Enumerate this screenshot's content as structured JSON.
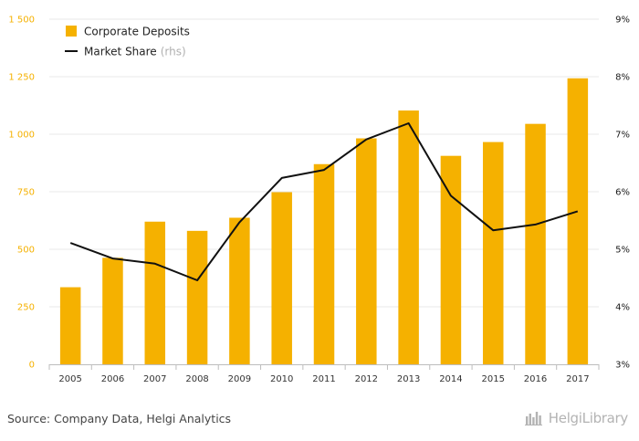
{
  "source_text": "Source: Company Data, Helgi Analytics",
  "brand": {
    "name": "HelgiLibrary",
    "icon": "helgi-library-logo-icon"
  },
  "colors": {
    "bar": "#f5b100",
    "line": "#111111",
    "grid": "#e8e8e8",
    "left_axis": "#f5b100",
    "right_axis": "#1a1a1a"
  },
  "chart_data": {
    "type": "bar",
    "categories": [
      "2005",
      "2006",
      "2007",
      "2008",
      "2009",
      "2010",
      "2011",
      "2012",
      "2013",
      "2014",
      "2015",
      "2016",
      "2017"
    ],
    "series": [
      {
        "name": "Corporate Deposits",
        "type": "bar",
        "axis": "left",
        "values": [
          335,
          463,
          620,
          580,
          637,
          748,
          870,
          982,
          1103,
          906,
          966,
          1045,
          1243
        ]
      },
      {
        "name": "Market Share",
        "unit": "(rhs)",
        "type": "line",
        "axis": "right",
        "values": [
          5.11,
          4.84,
          4.75,
          4.46,
          5.47,
          6.24,
          6.38,
          6.91,
          7.19,
          5.93,
          5.33,
          5.43,
          5.66
        ]
      }
    ],
    "left_axis": {
      "min": 0,
      "max": 1500,
      "ticks": [
        0,
        250,
        500,
        750,
        1000,
        1250,
        1500
      ],
      "tick_labels": [
        "0",
        "250",
        "500",
        "750",
        "1 000",
        "1 250",
        "1 500"
      ]
    },
    "right_axis": {
      "min": 3,
      "max": 9,
      "ticks": [
        3,
        4,
        5,
        6,
        7,
        8,
        9
      ],
      "tick_labels": [
        "3%",
        "4%",
        "5%",
        "6%",
        "7%",
        "8%",
        "9%"
      ]
    },
    "grid": true,
    "legend_position": "top-left"
  }
}
